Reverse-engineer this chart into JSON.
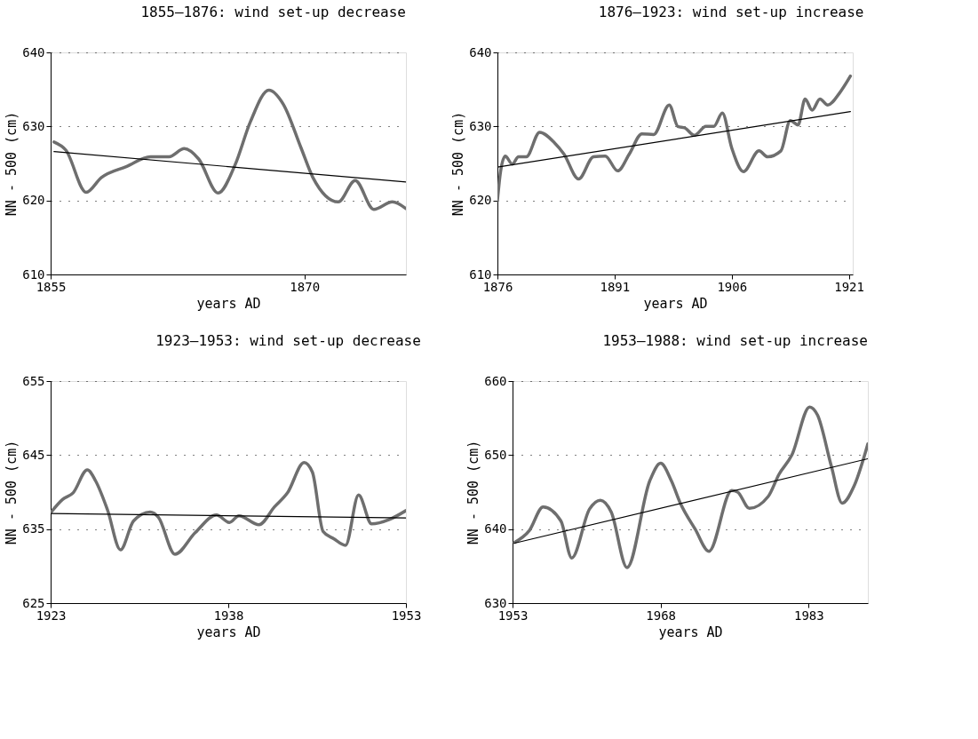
{
  "chart_data": [
    {
      "type": "line",
      "title": "1855–1876: wind set-up decrease",
      "xlabel": "years AD",
      "ylabel": "NN - 500 (cm)",
      "xlim": [
        1855,
        1876
      ],
      "xticks": [
        1855,
        1870
      ],
      "ylim": [
        610,
        640
      ],
      "yticks": [
        610,
        620,
        630,
        640
      ],
      "grid": "y",
      "line_style": "solid",
      "series": [
        {
          "color": "#6e6e6e",
          "x": [
            1855.2,
            1855.9,
            1857.1,
            1858.0,
            1859.5,
            1860.9,
            1862.0,
            1862.9,
            1863.75,
            1864.9,
            1865.9,
            1866.8,
            1867.9,
            1868.75,
            1869.8,
            1870.5,
            1872.0,
            1873.0,
            1874.1,
            1875.2,
            1876.0
          ],
          "values": [
            627.9,
            626.8,
            621.1,
            623.1,
            624.6,
            625.9,
            625.9,
            627.0,
            625.6,
            621.0,
            624.8,
            630.6,
            634.9,
            633.0,
            627.1,
            623.1,
            619.8,
            622.7,
            618.8,
            619.8,
            618.9
          ]
        },
        {
          "color": "#000000",
          "x": [
            1855.2,
            1876.0
          ],
          "values": [
            626.6,
            622.5
          ]
        }
      ]
    },
    {
      "type": "line",
      "title": "1876–1923: wind set-up increase",
      "xlabel": "years AD",
      "ylabel": "NN - 500 (cm)",
      "xlim": [
        1876,
        1921.5
      ],
      "xticks": [
        1876,
        1891,
        1906,
        1921
      ],
      "ylim": [
        610,
        640
      ],
      "yticks": [
        610,
        620,
        630,
        640
      ],
      "grid": "y",
      "line_style": "solid",
      "series": [
        {
          "color": "#6e6e6e",
          "x": [
            1876.0,
            1876.4,
            1877.0,
            1877.9,
            1878.7,
            1879.7,
            1881.4,
            1883.3,
            1884.5,
            1886.4,
            1888.3,
            1889.8,
            1891.4,
            1892.9,
            1894.5,
            1896.0,
            1898.0,
            1899.1,
            1900.0,
            1901.2,
            1902.7,
            1903.7,
            1904.8,
            1906.0,
            1907.5,
            1909.5,
            1910.6,
            1912.3,
            1913.5,
            1914.5,
            1915.4,
            1916.3,
            1917.3,
            1918.3,
            1919.8,
            1921.2
          ],
          "values": [
            620.0,
            623.9,
            626.0,
            624.9,
            625.9,
            625.9,
            629.2,
            627.8,
            626.3,
            622.9,
            625.9,
            626.0,
            624.0,
            626.3,
            629.0,
            628.9,
            632.9,
            630.0,
            629.8,
            628.8,
            630.0,
            630.0,
            631.8,
            627.1,
            623.9,
            626.7,
            625.9,
            626.7,
            630.8,
            630.2,
            633.7,
            632.2,
            633.7,
            632.9,
            634.5,
            636.8
          ]
        },
        {
          "color": "#000000",
          "x": [
            1876.0,
            1921.2
          ],
          "values": [
            624.5,
            632.0
          ]
        }
      ]
    },
    {
      "type": "line",
      "title": "1923–1953: wind set-up decrease",
      "xlabel": "years AD",
      "ylabel": "NN - 500 (cm)",
      "xlim": [
        1923,
        1953
      ],
      "xticks": [
        1923,
        1938,
        1953
      ],
      "ylim": [
        625,
        655
      ],
      "yticks": [
        625,
        635,
        645,
        655
      ],
      "grid": "y",
      "line_style": "solid",
      "series": [
        {
          "color": "#6e6e6e",
          "x": [
            1923.05,
            1924.0,
            1924.9,
            1926.1,
            1926.8,
            1927.8,
            1928.9,
            1930.0,
            1931.4,
            1932.1,
            1933.5,
            1935.2,
            1937.0,
            1938.1,
            1938.9,
            1940.6,
            1941.9,
            1943.0,
            1944.4,
            1945.1,
            1946.0,
            1946.9,
            1947.9,
            1949.0,
            1950.1,
            1951.6,
            1953.0
          ],
          "values": [
            637.3,
            639.0,
            639.9,
            643.0,
            641.5,
            637.6,
            632.2,
            636.1,
            637.3,
            636.6,
            631.6,
            634.5,
            636.9,
            635.9,
            636.8,
            635.6,
            638.0,
            639.9,
            644.0,
            642.7,
            634.7,
            633.7,
            632.8,
            639.6,
            635.7,
            636.3,
            637.5
          ]
        },
        {
          "color": "#000000",
          "x": [
            1923.05,
            1953.0
          ],
          "values": [
            637.1,
            636.5
          ]
        }
      ]
    },
    {
      "type": "line",
      "title": "1953–1988: wind set-up increase",
      "xlabel": "years AD",
      "ylabel": "NN - 500 (cm)",
      "xlim": [
        1953,
        1989
      ],
      "xticks": [
        1953,
        1968,
        1983
      ],
      "ylim": [
        630,
        660
      ],
      "yticks": [
        630,
        640,
        650,
        660
      ],
      "grid": "y",
      "line_style": "solid",
      "series": [
        {
          "color": "#6e6e6e",
          "x": [
            1953.2,
            1954.7,
            1956.1,
            1957.9,
            1959.0,
            1960.8,
            1961.9,
            1963.0,
            1964.6,
            1966.9,
            1968.0,
            1969.1,
            1970.0,
            1971.5,
            1972.9,
            1975.2,
            1975.8,
            1977.0,
            1978.9,
            1980.0,
            1981.3,
            1983.1,
            1983.9,
            1985.3,
            1986.4,
            1987.6,
            1989.0
          ],
          "values": [
            638.2,
            639.8,
            643.0,
            641.1,
            636.1,
            642.7,
            643.9,
            642.3,
            634.8,
            646.5,
            648.9,
            646.5,
            643.5,
            640.0,
            637.0,
            645.2,
            645.0,
            642.8,
            644.4,
            647.4,
            650.0,
            656.5,
            655.4,
            648.5,
            643.5,
            645.8,
            651.5
          ]
        },
        {
          "color": "#000000",
          "x": [
            1953.2,
            1989.0
          ],
          "values": [
            638.1,
            649.5
          ]
        }
      ]
    }
  ]
}
